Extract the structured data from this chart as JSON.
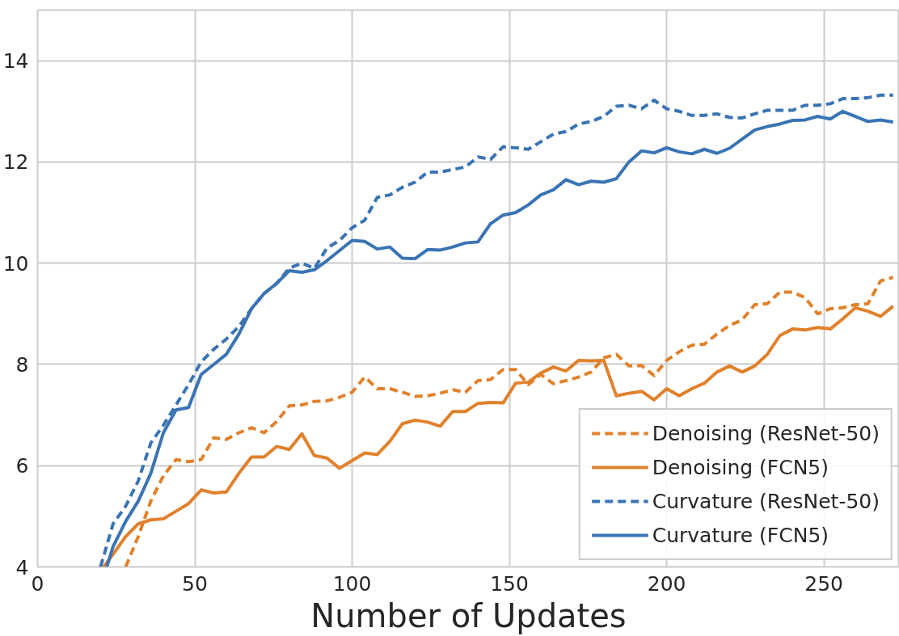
{
  "chart_data": {
    "type": "line",
    "xlabel": "Number of Updates",
    "xlim": [
      0,
      274
    ],
    "ylim": [
      4,
      15
    ],
    "xticks": [
      0,
      50,
      100,
      150,
      200,
      250
    ],
    "yticks": [
      4,
      6,
      8,
      10,
      12,
      14
    ],
    "grid": true,
    "legend": "bottom right",
    "series": [
      {
        "name": "Denoising (ResNet-50)",
        "color": "#e1812c",
        "line_style": "dashed",
        "x": [
          28,
          32,
          36,
          40,
          44,
          48,
          52,
          56,
          60,
          64,
          68,
          72,
          76,
          80,
          84,
          88,
          92,
          96,
          100,
          104,
          108,
          112,
          116,
          120,
          124,
          128,
          132,
          136,
          140,
          144,
          148,
          152,
          156,
          160,
          164,
          168,
          172,
          176,
          180,
          184,
          188,
          192,
          196,
          200,
          204,
          208,
          212,
          216,
          220,
          224,
          228,
          232,
          236,
          240,
          244,
          248,
          252,
          256,
          260,
          264,
          268,
          272
        ],
        "values": [
          4.0,
          4.6,
          5.3,
          5.8,
          6.12,
          6.08,
          6.12,
          6.55,
          6.52,
          6.65,
          6.75,
          6.65,
          6.87,
          7.18,
          7.2,
          7.27,
          7.28,
          7.35,
          7.45,
          7.75,
          7.52,
          7.52,
          7.45,
          7.37,
          7.38,
          7.43,
          7.5,
          7.45,
          7.68,
          7.7,
          7.9,
          7.9,
          7.6,
          7.8,
          7.62,
          7.68,
          7.75,
          7.85,
          8.13,
          8.2,
          7.97,
          7.98,
          7.78,
          8.08,
          8.25,
          8.38,
          8.4,
          8.6,
          8.77,
          8.88,
          9.18,
          9.2,
          9.43,
          9.43,
          9.32,
          9.0,
          9.1,
          9.12,
          9.18,
          9.2,
          9.65,
          9.72
        ]
      },
      {
        "name": "Denoising (FCN5)",
        "color": "#e1812c",
        "line_style": "solid",
        "x": [
          21,
          24,
          28,
          32,
          36,
          40,
          44,
          48,
          52,
          56,
          60,
          64,
          68,
          72,
          76,
          80,
          84,
          88,
          92,
          96,
          100,
          104,
          108,
          112,
          116,
          120,
          124,
          128,
          132,
          136,
          140,
          144,
          148,
          152,
          156,
          160,
          164,
          168,
          172,
          176,
          180,
          184,
          188,
          192,
          196,
          200,
          204,
          208,
          212,
          216,
          220,
          224,
          228,
          232,
          236,
          240,
          244,
          248,
          252,
          256,
          260,
          264,
          268,
          272
        ],
        "values": [
          4.0,
          4.25,
          4.6,
          4.85,
          4.93,
          4.95,
          5.1,
          5.25,
          5.52,
          5.46,
          5.48,
          5.85,
          6.17,
          6.17,
          6.38,
          6.32,
          6.63,
          6.2,
          6.15,
          5.95,
          6.1,
          6.25,
          6.22,
          6.48,
          6.83,
          6.9,
          6.86,
          6.78,
          7.07,
          7.07,
          7.23,
          7.25,
          7.24,
          7.63,
          7.65,
          7.83,
          7.95,
          7.87,
          8.08,
          8.07,
          8.08,
          7.38,
          7.43,
          7.47,
          7.3,
          7.52,
          7.38,
          7.52,
          7.63,
          7.85,
          7.97,
          7.85,
          7.97,
          8.2,
          8.57,
          8.7,
          8.68,
          8.73,
          8.7,
          8.9,
          9.12,
          9.05,
          8.95,
          9.15
        ]
      },
      {
        "name": "Curvature (ResNet-50)",
        "color": "#3a74b4",
        "line_style": "dashed",
        "x": [
          20,
          24,
          28,
          32,
          36,
          40,
          44,
          48,
          52,
          56,
          60,
          64,
          68,
          72,
          76,
          80,
          84,
          88,
          92,
          96,
          100,
          104,
          108,
          112,
          116,
          120,
          124,
          128,
          132,
          136,
          140,
          144,
          148,
          152,
          156,
          160,
          164,
          168,
          172,
          176,
          180,
          184,
          188,
          192,
          196,
          200,
          204,
          208,
          212,
          216,
          220,
          224,
          228,
          232,
          236,
          240,
          244,
          248,
          252,
          256,
          260,
          264,
          268,
          272
        ],
        "values": [
          4.0,
          4.85,
          5.2,
          5.7,
          6.45,
          6.8,
          7.2,
          7.6,
          8.05,
          8.3,
          8.5,
          8.75,
          9.1,
          9.4,
          9.6,
          9.9,
          10.0,
          9.9,
          10.3,
          10.45,
          10.7,
          10.85,
          11.3,
          11.35,
          11.5,
          11.6,
          11.8,
          11.8,
          11.85,
          11.9,
          12.1,
          12.05,
          12.3,
          12.28,
          12.25,
          12.4,
          12.55,
          12.6,
          12.75,
          12.8,
          12.9,
          13.1,
          13.12,
          13.05,
          13.22,
          13.05,
          13.0,
          12.92,
          12.92,
          12.95,
          12.88,
          12.87,
          12.95,
          13.02,
          13.02,
          13.02,
          13.12,
          13.12,
          13.15,
          13.25,
          13.25,
          13.27,
          13.32,
          13.32
        ]
      },
      {
        "name": "Curvature (FCN5)",
        "color": "#3a74b4",
        "line_style": "solid",
        "x": [
          22,
          24,
          28,
          32,
          36,
          40,
          44,
          48,
          52,
          56,
          60,
          64,
          68,
          72,
          76,
          80,
          84,
          88,
          92,
          96,
          100,
          104,
          108,
          112,
          116,
          120,
          124,
          128,
          132,
          136,
          140,
          144,
          148,
          152,
          156,
          160,
          164,
          168,
          172,
          176,
          180,
          184,
          188,
          192,
          196,
          200,
          204,
          208,
          212,
          216,
          220,
          224,
          228,
          232,
          236,
          240,
          244,
          248,
          252,
          256,
          260,
          264,
          268,
          272
        ],
        "values": [
          4.0,
          4.4,
          4.9,
          5.3,
          5.85,
          6.65,
          7.1,
          7.15,
          7.8,
          8.0,
          8.2,
          8.6,
          9.1,
          9.4,
          9.6,
          9.85,
          9.82,
          9.87,
          10.05,
          10.25,
          10.45,
          10.43,
          10.28,
          10.32,
          10.1,
          10.09,
          10.27,
          10.26,
          10.32,
          10.4,
          10.42,
          10.78,
          10.95,
          11.0,
          11.15,
          11.35,
          11.45,
          11.65,
          11.55,
          11.62,
          11.6,
          11.67,
          12.0,
          12.22,
          12.18,
          12.28,
          12.2,
          12.16,
          12.25,
          12.17,
          12.27,
          12.45,
          12.63,
          12.7,
          12.75,
          12.82,
          12.83,
          12.9,
          12.85,
          13.0,
          12.9,
          12.8,
          12.83,
          12.79
        ]
      }
    ]
  }
}
